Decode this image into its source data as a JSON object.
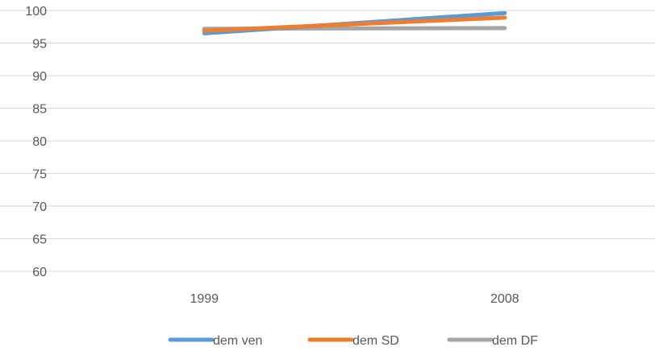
{
  "chart_data": {
    "type": "line",
    "title": "",
    "xlabel": "",
    "ylabel": "",
    "categories": [
      "1999",
      "2008"
    ],
    "ylim": [
      60,
      100
    ],
    "ytick_step": 5,
    "yticks": [
      "60",
      "65",
      "70",
      "75",
      "80",
      "85",
      "90",
      "95",
      "100"
    ],
    "grid": "horizontal",
    "legend": "bottom",
    "series": [
      {
        "name": "dem ven",
        "values": [
          96.5,
          99.6
        ],
        "color": "#5b9bd5"
      },
      {
        "name": "dem SD",
        "values": [
          96.9,
          98.9
        ],
        "color": "#ed7d31"
      },
      {
        "name": "dem DF",
        "values": [
          97.2,
          97.3
        ],
        "color": "#a5a5a5"
      }
    ]
  }
}
